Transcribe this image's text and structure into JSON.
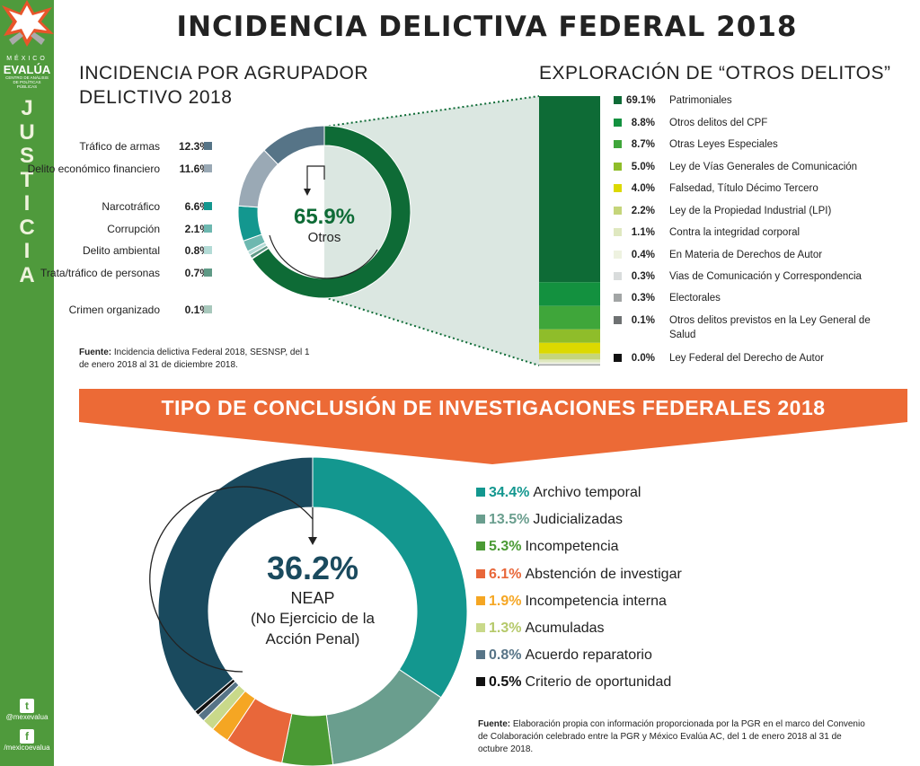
{
  "sidebar": {
    "brand_top": "MÉXICO",
    "brand_name": "EVALÚA",
    "brand_sub": "CENTRO DE ANÁLISIS DE POLÍTICAS PÚBLICAS",
    "section": "JUSTICIA",
    "twitter_icon": "twitter-icon",
    "twitter": "@mexevalua",
    "facebook_icon": "facebook-icon",
    "facebook": "/mexicoevalua"
  },
  "title": "INCIDENCIA DELICTIVA FEDERAL 2018",
  "left_title": "INCIDENCIA POR AGRUPADOR DELICTIVO 2018",
  "right_title": "EXPLORACIÓN DE “OTROS DELITOS”",
  "left_note_label": "Fuente:",
  "left_note": "Incidencia delictiva Federal 2018, SESNSP, del 1 de enero 2018 al 31 de diciembre 2018.",
  "banner": "TIPO DE CONCLUSIÓN DE INVESTIGACIONES FEDERALES 2018",
  "bottom_note_label": "Fuente:",
  "bottom_note": "Elaboración propia con información proporcionada por la PGR en el marco del Convenio de Colaboración celebrado entre la PGR y México Evalúa AC, del 1 de enero 2018 al 31 de octubre 2018.",
  "chart_data": [
    {
      "type": "pie",
      "title": "Incidencia por agrupador delictivo 2018",
      "center_value": "65.9%",
      "center_label": "Otros",
      "categories": [
        "Otros",
        "Crimen organizado",
        "Trata/tráfico de personas",
        "Delito ambiental",
        "Corrupción",
        "Narcotráfico",
        "Delito económico financiero",
        "Tráfico de armas"
      ],
      "values": [
        65.9,
        0.1,
        0.7,
        0.8,
        2.1,
        6.6,
        11.6,
        12.3
      ],
      "labels": [
        "65.9%",
        "0.1%",
        "0.7%",
        "0.8%",
        "2.1%",
        "6.6%",
        "11.6%",
        "12.3%"
      ],
      "colors": [
        "#0e6b36",
        "#a8c8bc",
        "#5f9a86",
        "#b3dbd6",
        "#6db8b0",
        "#13978f",
        "#9aa9b5",
        "#567487"
      ]
    },
    {
      "type": "bar",
      "title": "Exploración de “otros delitos”",
      "stacked": true,
      "categories": [
        "Patrimoniales",
        "Otros delitos del CPF",
        "Otras Leyes Especiales",
        "Ley de Vías Generales de Comunicación",
        "Falsedad, Título Décimo Tercero",
        "Ley de la Propiedad Industrial (LPI)",
        "Contra la integridad corporal",
        "En Materia de Derechos de Autor",
        "Vias de Comunicación y Correspondencia",
        "Electorales",
        "Otros delitos previstos en la Ley General de Salud",
        "Ley Federal del Derecho de Autor"
      ],
      "values": [
        69.1,
        8.8,
        8.7,
        5.0,
        4.0,
        2.2,
        1.1,
        0.4,
        0.3,
        0.3,
        0.1,
        0.0
      ],
      "labels": [
        "69.1%",
        "8.8%",
        "8.7%",
        "5.0%",
        "4.0%",
        "2.2%",
        "1.1%",
        "0.4%",
        "0.3%",
        "0.3%",
        "0.1%",
        "0.0%"
      ],
      "colors": [
        "#0e6b36",
        "#13913f",
        "#3fa63a",
        "#8fbd2a",
        "#dcd900",
        "#c5d57a",
        "#dfe8c0",
        "#eef2e0",
        "#d9dcdc",
        "#a2a5a5",
        "#6e7172",
        "#111111"
      ]
    },
    {
      "type": "pie",
      "title": "Tipo de conclusión de investigaciones federales 2018",
      "center_value": "36.2%",
      "center_label": "NEAP",
      "center_sub": "(No Ejercicio de la Acción Penal)",
      "categories": [
        "Archivo temporal",
        "Judicializadas",
        "Incompetencia",
        "Abstención de investigar",
        "Incompetencia interna",
        "Acumuladas",
        "Acuerdo reparatorio",
        "Criterio de oportunidad",
        "NEAP"
      ],
      "values": [
        34.4,
        13.5,
        5.3,
        6.1,
        1.9,
        1.3,
        0.8,
        0.5,
        36.2
      ],
      "labels": [
        "34.4%",
        "13.5%",
        "5.3%",
        "6.1%",
        "1.9%",
        "1.3%",
        "0.8%",
        "0.5%",
        "36.2%"
      ],
      "colors": [
        "#13978f",
        "#6a9e8e",
        "#4a9a34",
        "#e8673a",
        "#f5a623",
        "#c9d98a",
        "#577487",
        "#111111",
        "#1a4a5e"
      ]
    }
  ]
}
